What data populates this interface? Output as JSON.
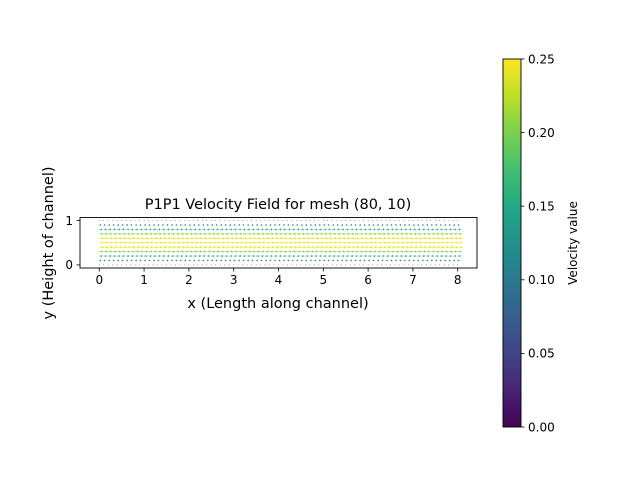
{
  "chart_data": {
    "type": "quiver",
    "title": "P1P1 Velocity Field for mesh (80, 10)",
    "xlabel": "x (Length along channel)",
    "ylabel": "y (Height of channel)",
    "xlim": [
      -0.43,
      8.43
    ],
    "ylim": [
      -0.07,
      1.07
    ],
    "xticks": [
      0,
      1,
      2,
      3,
      4,
      5,
      6,
      7,
      8
    ],
    "yticks": [
      0,
      1
    ],
    "grid": false,
    "x_nodes": {
      "start": 0,
      "stop": 8,
      "count": 81
    },
    "y_rows": [
      0.0,
      0.1,
      0.2,
      0.3,
      0.4,
      0.5,
      0.6,
      0.7,
      0.8,
      0.9,
      1.0
    ],
    "velocity_u_by_row": [
      0.0,
      0.09,
      0.16,
      0.21,
      0.24,
      0.25,
      0.24,
      0.21,
      0.16,
      0.09,
      0.0
    ],
    "velocity_v": 0.0,
    "colorbar": {
      "label": "Velocity value",
      "colormap": "viridis",
      "range": [
        0.0,
        0.25
      ],
      "ticks": [
        "0.00",
        "0.05",
        "0.10",
        "0.15",
        "0.20",
        "0.25"
      ]
    }
  }
}
